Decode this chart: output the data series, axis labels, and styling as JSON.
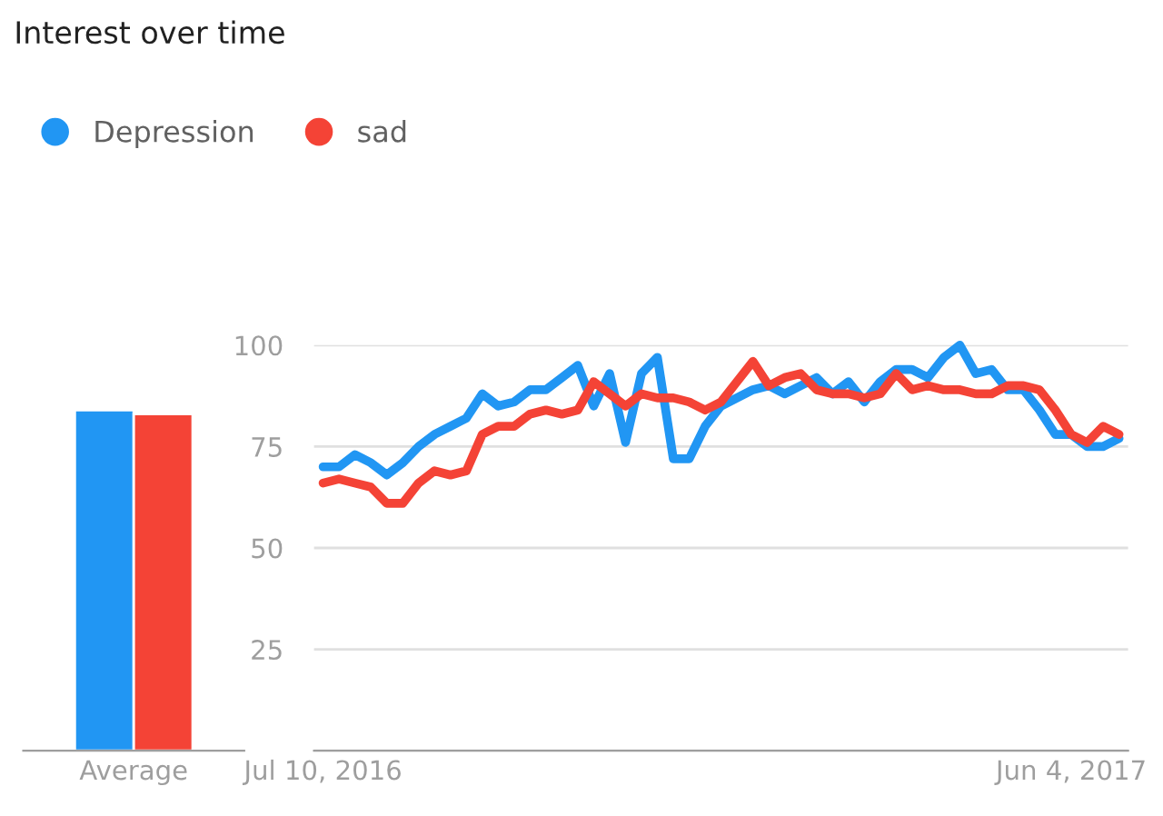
{
  "chart_data": [
    {
      "type": "bar",
      "title": "Interest over time",
      "categories": [
        "Average"
      ],
      "ylim": [
        0,
        100
      ],
      "tick_labels": "x",
      "legend": false,
      "series": [
        {
          "color": "#2196f3",
          "values": [
            84
          ]
        },
        {
          "color": "#f44336",
          "values": [
            83
          ]
        }
      ]
    },
    {
      "type": "line",
      "x": [
        "2016-07-10",
        "2016-07-17",
        "2016-07-24",
        "2016-07-31",
        "2016-08-07",
        "2016-08-14",
        "2016-08-21",
        "2016-08-28",
        "2016-09-04",
        "2016-09-11",
        "2016-09-18",
        "2016-09-25",
        "2016-10-02",
        "2016-10-09",
        "2016-10-16",
        "2016-10-23",
        "2016-10-30",
        "2016-11-06",
        "2016-11-13",
        "2016-11-20",
        "2016-11-27",
        "2016-12-04",
        "2016-12-11",
        "2016-12-18",
        "2016-12-25",
        "2017-01-01",
        "2017-01-08",
        "2017-01-15",
        "2017-01-22",
        "2017-01-29",
        "2017-02-05",
        "2017-02-12",
        "2017-02-19",
        "2017-02-26",
        "2017-03-05",
        "2017-03-12",
        "2017-03-19",
        "2017-03-26",
        "2017-04-02",
        "2017-04-09",
        "2017-04-16",
        "2017-04-23",
        "2017-04-30",
        "2017-05-07",
        "2017-05-14",
        "2017-05-21",
        "2017-05-28",
        "2017-06-04",
        "2017-06-11",
        "2017-06-18",
        "2017-06-25"
      ],
      "xlim": [
        "2016-07-06",
        "2017-06-29"
      ],
      "xticks": [
        {
          "value": "2016-07-10",
          "label": "Jul 10, 2016"
        },
        {
          "value": "2017-06-04",
          "label": "Jun 4, 2017"
        }
      ],
      "ylim": [
        0,
        100
      ],
      "yticks": [
        {
          "value": 0,
          "label": null
        },
        25,
        50,
        75,
        100
      ],
      "grid": "y",
      "legend": "top left",
      "marker": "none",
      "line_style": "solid",
      "series": [
        {
          "name": "Depression",
          "color": "#2196f3",
          "values": [
            70,
            70,
            73,
            71,
            68,
            71,
            75,
            78,
            80,
            82,
            88,
            85,
            86,
            89,
            89,
            92,
            95,
            85,
            93,
            76,
            93,
            97,
            72,
            72,
            80,
            85,
            87,
            89,
            90,
            88,
            90,
            92,
            88,
            91,
            86,
            91,
            94,
            94,
            92,
            97,
            100,
            93,
            94,
            89,
            89,
            84,
            78,
            78,
            75,
            75,
            77
          ]
        },
        {
          "name": "sad",
          "color": "#f44336",
          "values": [
            66,
            67,
            66,
            65,
            61,
            61,
            66,
            69,
            68,
            69,
            78,
            80,
            80,
            83,
            84,
            83,
            84,
            91,
            88,
            85,
            88,
            87,
            87,
            86,
            84,
            86,
            91,
            96,
            90,
            92,
            93,
            89,
            88,
            88,
            87,
            88,
            93,
            89,
            90,
            89,
            89,
            88,
            88,
            90,
            90,
            89,
            84,
            78,
            76,
            80,
            78
          ]
        }
      ]
    }
  ]
}
